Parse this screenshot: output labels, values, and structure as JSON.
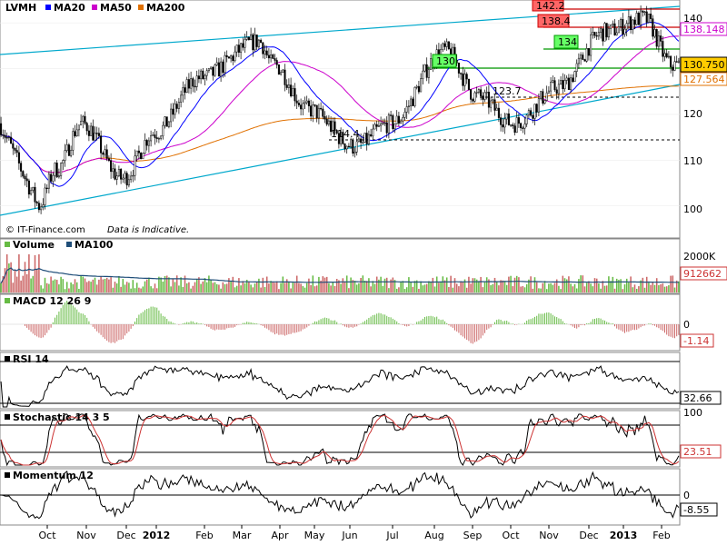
{
  "header": {
    "symbol": "LVMH",
    "legend": [
      {
        "label": "MA20",
        "color": "#0000ff"
      },
      {
        "label": "MA50",
        "color": "#cc00cc"
      },
      {
        "label": "MA200",
        "color": "#e07000"
      }
    ]
  },
  "price_panel": {
    "copyright": "© IT-Finance.com",
    "disclaimer": "Data is Indicative.",
    "y_ticks": [
      "140",
      "130",
      "120",
      "110",
      "100"
    ],
    "side_labels": [
      {
        "text": "138.148",
        "color": "#cc00cc",
        "bg": "#ffffff"
      },
      {
        "text": "130.750",
        "color": "#000000",
        "bg": "#ffcc00"
      },
      {
        "text": "127.564",
        "color": "#e07000",
        "bg": "#ffffff"
      }
    ],
    "level_tags": [
      {
        "text": "142.2",
        "bg": "#ff6666"
      },
      {
        "text": "138.4",
        "bg": "#ff6666"
      },
      {
        "text": "134",
        "bg": "#66ff66"
      },
      {
        "text": "130",
        "bg": "#66ff66"
      }
    ],
    "level_notes": [
      "123.7",
      "114.4"
    ]
  },
  "volume_panel": {
    "title_parts": [
      "Volume",
      "MA100"
    ],
    "y_tick": "2000K",
    "last_value": "912662"
  },
  "macd_panel": {
    "title": "MACD 12 26 9",
    "y_tick": "0",
    "last_value": "-1.14"
  },
  "rsi_panel": {
    "title": "RSI 14",
    "last_value": "32.66"
  },
  "stoch_panel": {
    "title": "Stochastic 14 3 5",
    "y_tick": "100",
    "last_value": "23.51"
  },
  "momentum_panel": {
    "title": "Momentum 12",
    "y_tick": "0",
    "last_value": "-8.55"
  },
  "x_axis": {
    "labels": [
      "Oct",
      "Nov",
      "Dec",
      "2012",
      "Feb",
      "Mar",
      "Apr",
      "May",
      "Jun",
      "Jul",
      "Aug",
      "Sep",
      "Oct",
      "Nov",
      "Dec",
      "2013",
      "Feb"
    ],
    "bold": [
      "2012",
      "2013"
    ]
  },
  "chart_data": {
    "type": "candlestick",
    "title": "LVMH",
    "indicators": [
      "MA20",
      "MA50",
      "MA200",
      "Volume",
      "MA100",
      "MACD 12 26 9",
      "RSI 14",
      "Stochastic 14 3 5",
      "Momentum 12"
    ],
    "price_anchors": [
      {
        "x": "Oct",
        "y": 100
      },
      {
        "x": "Nov",
        "y": 108
      },
      {
        "x": "Nov",
        "y": 118
      },
      {
        "x": "Dec",
        "y": 106
      },
      {
        "x": "2012",
        "y": 116
      },
      {
        "x": "Feb",
        "y": 128
      },
      {
        "x": "Mar",
        "y": 136
      },
      {
        "x": "Apr",
        "y": 131
      },
      {
        "x": "May",
        "y": 121
      },
      {
        "x": "Jun",
        "y": 113
      },
      {
        "x": "Jul",
        "y": 118
      },
      {
        "x": "Aug",
        "y": 134
      },
      {
        "x": "Sep",
        "y": 124
      },
      {
        "x": "Oct",
        "y": 118
      },
      {
        "x": "Nov",
        "y": 126
      },
      {
        "x": "Dec",
        "y": 138
      },
      {
        "x": "2013",
        "y": 141
      },
      {
        "x": "Feb",
        "y": 130.75
      }
    ],
    "ylim": [
      93,
      145
    ],
    "last_values": {
      "close": 130.75,
      "MA50": 138.148,
      "MA200": 127.564,
      "volume": 912662,
      "MACD": -1.14,
      "RSI": 32.66,
      "Stochastic": 23.51,
      "Momentum": -8.55
    },
    "levels": [
      142.2,
      138.4,
      134,
      130,
      123.7,
      114.4
    ]
  }
}
